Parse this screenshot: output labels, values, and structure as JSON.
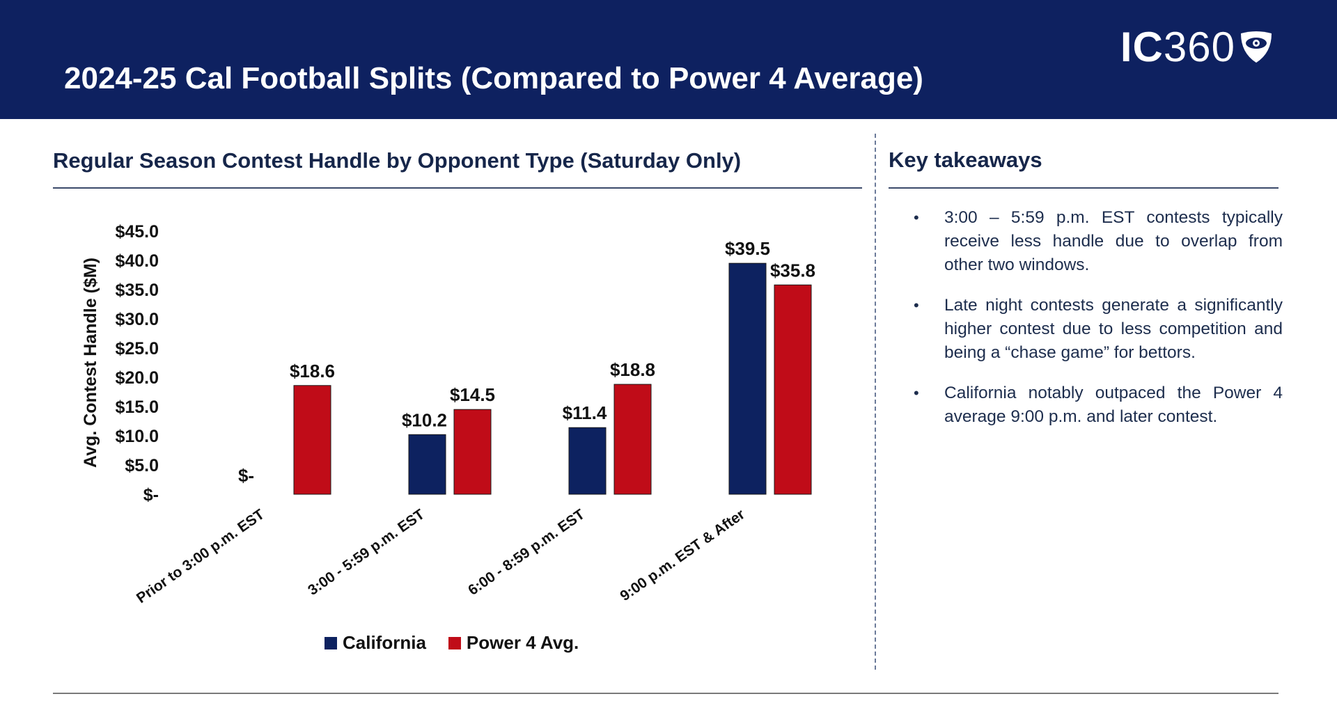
{
  "header": {
    "title": "2024-25 Cal Football Splits (Compared to Power 4 Average)",
    "logo_bold": "IC",
    "logo_light": "360"
  },
  "chart_section": {
    "title": "Regular Season Contest Handle by Opponent Type (Saturday Only)"
  },
  "takeaways_section": {
    "title": "Key takeaways",
    "items": [
      "3:00 – 5:59 p.m. EST contests typically receive less handle due to overlap from other two windows.",
      "Late night contests generate a significantly higher contest due to less competition and being a “chase game” for bettors.",
      "California notably outpaced the Power 4 average 9:00 p.m. and later contest."
    ]
  },
  "colors": {
    "navy": "#0e2160",
    "california": "#0d2260",
    "power4": "#c00c18"
  },
  "chart_data": {
    "type": "bar",
    "title": "Regular Season Contest Handle by Opponent Type (Saturday Only)",
    "xlabel": "",
    "ylabel": "Avg. Contest Handle ($M)",
    "ylim": [
      0,
      45
    ],
    "yticks": [
      0,
      5,
      10,
      15,
      20,
      25,
      30,
      35,
      40,
      45
    ],
    "ytick_labels": [
      "$-",
      "$5.0",
      "$10.0",
      "$15.0",
      "$20.0",
      "$25.0",
      "$30.0",
      "$35.0",
      "$40.0",
      "$45.0"
    ],
    "categories": [
      "Prior to 3:00 p.m. EST",
      "3:00 - 5:59 p.m. EST",
      "6:00 - 8:59 p.m. EST",
      "9:00 p.m. EST & After"
    ],
    "series": [
      {
        "name": "California",
        "color": "#0d2260",
        "values": [
          0,
          10.2,
          11.4,
          39.5
        ],
        "labels": [
          "$-",
          "$10.2",
          "$11.4",
          "$39.5"
        ]
      },
      {
        "name": "Power 4 Avg.",
        "color": "#c00c18",
        "values": [
          18.6,
          14.5,
          18.8,
          35.8
        ],
        "labels": [
          "$18.6",
          "$14.5",
          "$18.8",
          "$35.8"
        ]
      }
    ],
    "legend": "bottom-center",
    "grid": false
  }
}
